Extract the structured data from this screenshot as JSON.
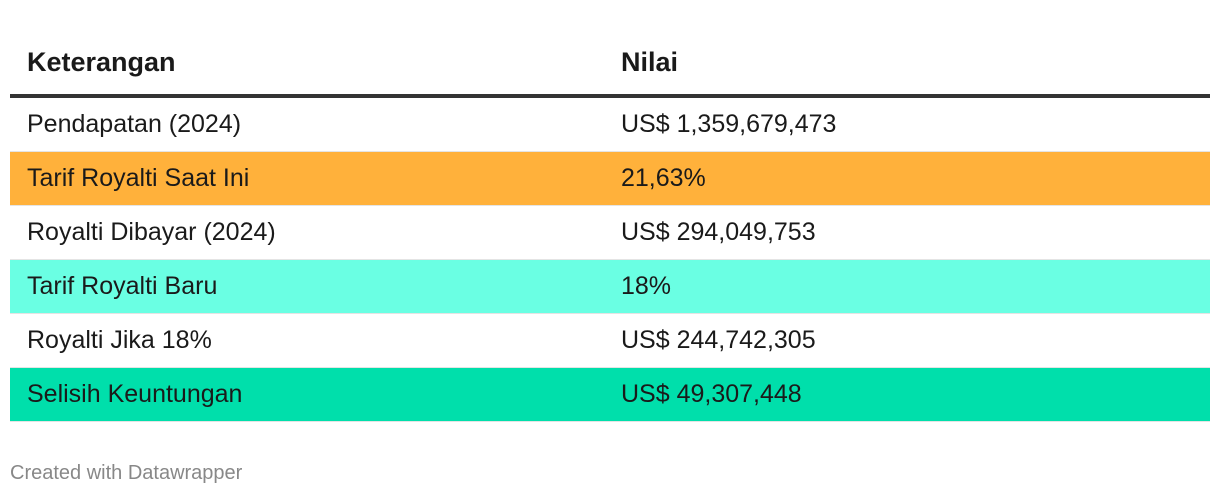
{
  "chart_data": {
    "type": "table",
    "columns": [
      "Keterangan",
      "Nilai"
    ],
    "rows": [
      {
        "label": "Pendapatan (2024)",
        "value": "US$ 1,359,679,473",
        "bg": "#ffffff"
      },
      {
        "label": "Tarif Royalti Saat Ini",
        "value": "21,63%",
        "bg": "#ffb13b"
      },
      {
        "label": "Royalti Dibayar (2024)",
        "value": "US$ 294,049,753",
        "bg": "#ffffff"
      },
      {
        "label": "Tarif Royalti Baru",
        "value": "18%",
        "bg": "#6affe3"
      },
      {
        "label": "Royalti Jika 18%",
        "value": "US$ 244,742,305",
        "bg": "#ffffff"
      },
      {
        "label": "Selisih Keuntungan",
        "value": "US$ 49,307,448",
        "bg": "#00dfab"
      }
    ]
  },
  "footer": {
    "credit": "Created with Datawrapper"
  }
}
